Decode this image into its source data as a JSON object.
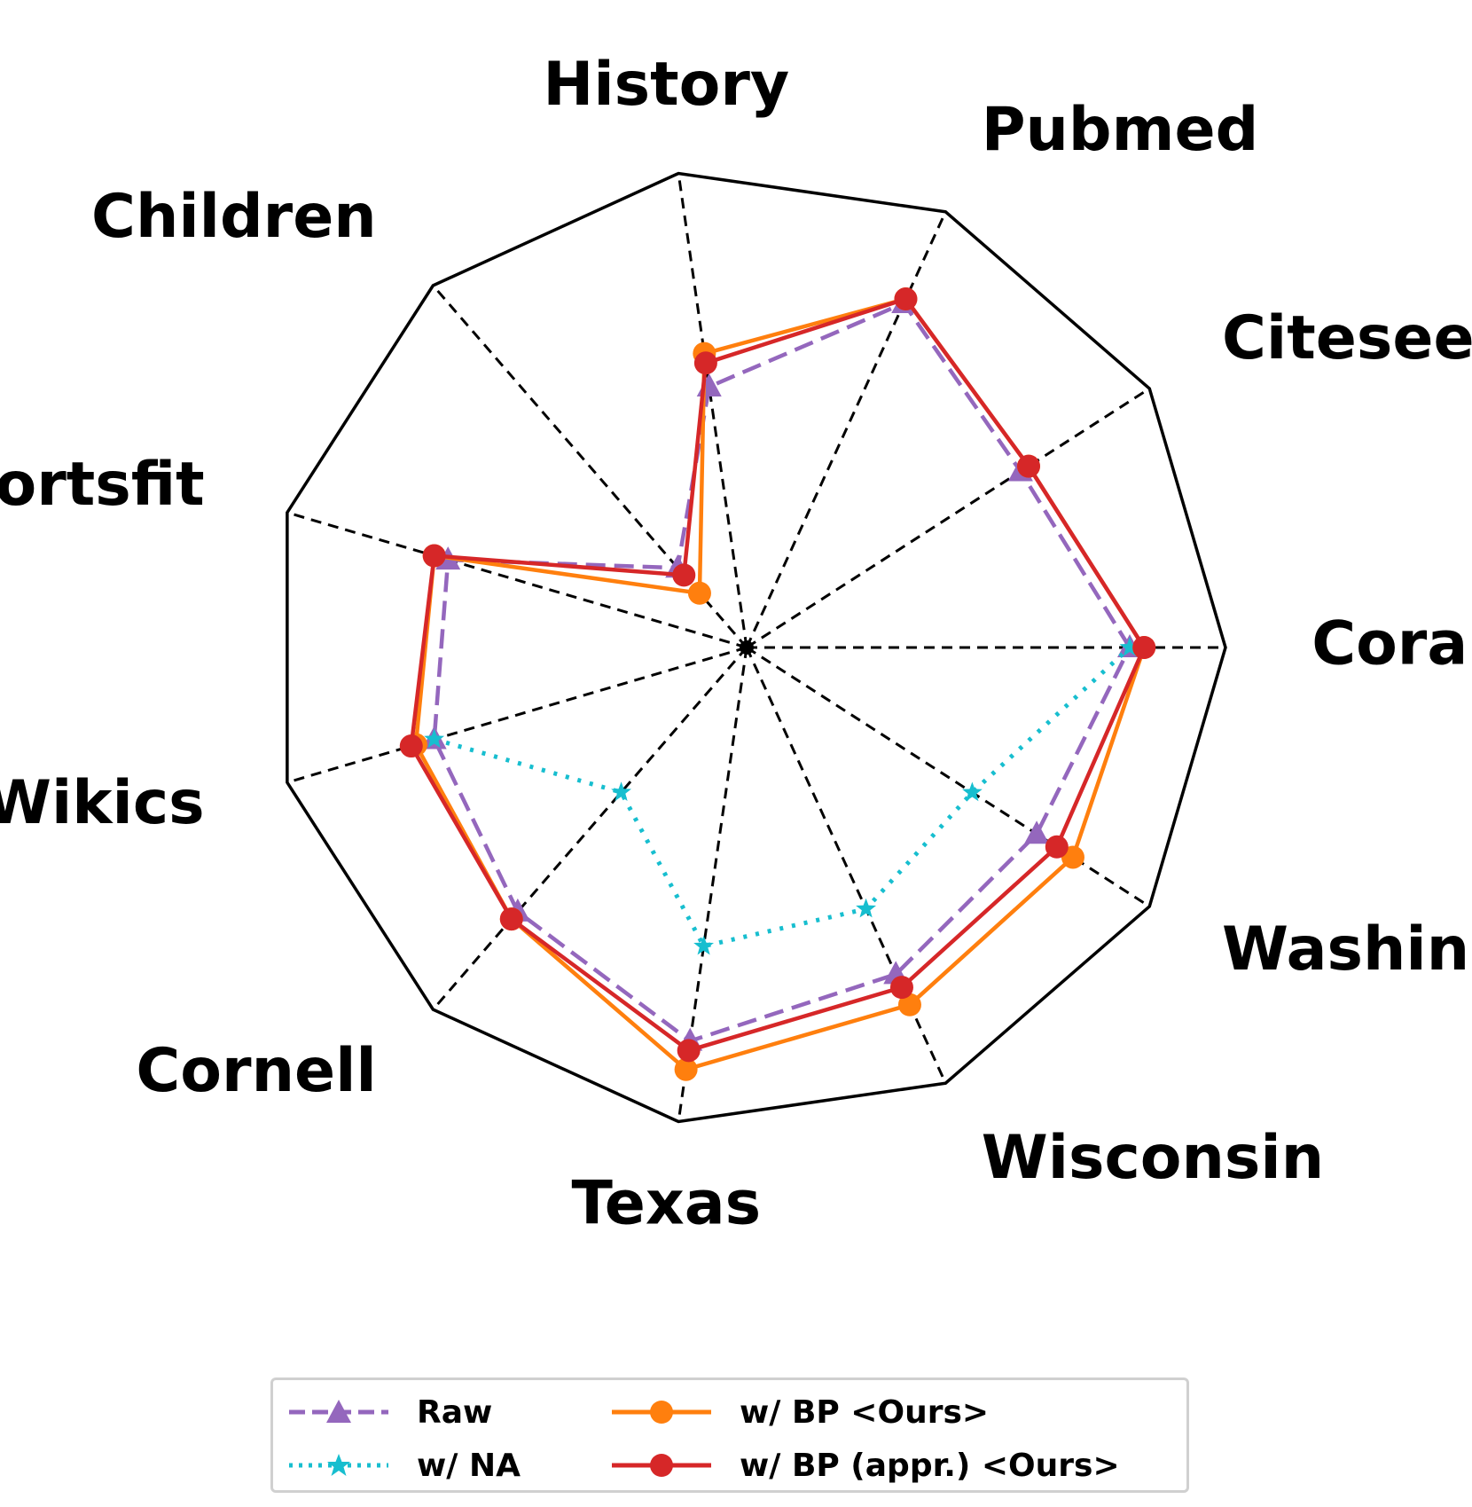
{
  "chart_data": {
    "type": "radar",
    "categories": [
      "Cora",
      "Citeseer",
      "Pubmed",
      "History",
      "Children",
      "Sportsfit",
      "Wikics",
      "Cornell",
      "Texas",
      "Wisconsin",
      "Washington"
    ],
    "rmax": 1.0,
    "grid": false,
    "series": [
      {
        "name": "Raw",
        "color": "#9467bd",
        "line": "dashed",
        "marker": "triangle",
        "values": [
          0.8,
          0.68,
          0.79,
          0.55,
          0.22,
          0.65,
          0.68,
          0.73,
          0.83,
          0.75,
          0.72
        ]
      },
      {
        "name": "w/ NA",
        "color": "#17becf",
        "line": "dotted",
        "marker": "star",
        "partial": true,
        "values": [
          0.8,
          null,
          null,
          null,
          null,
          null,
          0.68,
          0.4,
          0.63,
          0.6,
          0.56
        ]
      },
      {
        "name": "w/ BP <Ours>",
        "color": "#ff7f0e",
        "line": "solid",
        "marker": "circle",
        "values": [
          0.83,
          0.7,
          0.8,
          0.62,
          0.15,
          0.68,
          0.72,
          0.75,
          0.89,
          0.82,
          0.81
        ]
      },
      {
        "name": "w/ BP (appr.) <Ours>",
        "color": "#d62728",
        "line": "solid",
        "marker": "circle",
        "values": [
          0.83,
          0.7,
          0.8,
          0.6,
          0.2,
          0.68,
          0.73,
          0.75,
          0.85,
          0.78,
          0.77
        ]
      }
    ]
  },
  "legend": {
    "raw": "Raw",
    "na": "w/ NA",
    "bp": "w/ BP <Ours>",
    "bp_appr": "w/ BP (appr.) <Ours>"
  }
}
